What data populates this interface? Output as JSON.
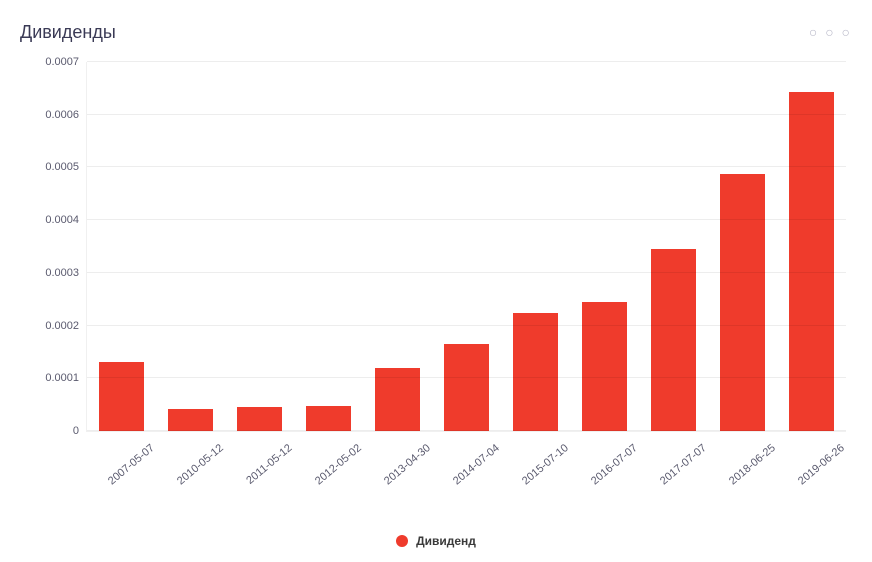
{
  "title": "Дивиденды",
  "menu_icon": "more-horizontal",
  "chart": {
    "type": "bar",
    "series_label": "Дивиденд",
    "series_color": "#ef3b2c",
    "background_color": "#ffffff",
    "grid_color": "rgba(0,0,0,0.07)",
    "axis_label_color": "#5a5a6e",
    "axis_label_fontsize": 11,
    "title_color": "#3a3a55",
    "title_fontsize": 18,
    "bar_width_ratio": 0.64,
    "ylim": [
      0,
      0.0007
    ],
    "ytick_step": 0.0001,
    "yticks": [
      {
        "v": 0,
        "label": "0"
      },
      {
        "v": 0.0001,
        "label": "0.0001"
      },
      {
        "v": 0.0002,
        "label": "0.0002"
      },
      {
        "v": 0.0003,
        "label": "0.0003"
      },
      {
        "v": 0.0004,
        "label": "0.0004"
      },
      {
        "v": 0.0005,
        "label": "0.0005"
      },
      {
        "v": 0.0006,
        "label": "0.0006"
      },
      {
        "v": 0.0007,
        "label": "0.0007"
      }
    ],
    "categories": [
      "2007-05-07",
      "2010-05-12",
      "2011-05-12",
      "2012-05-02",
      "2013-04-30",
      "2014-07-04",
      "2015-07-10",
      "2016-07-07",
      "2017-07-07",
      "2018-06-25",
      "2019-06-26"
    ],
    "values": [
      0.00013,
      4.2e-05,
      4.6e-05,
      4.8e-05,
      0.00012,
      0.000166,
      0.000224,
      0.000244,
      0.000346,
      0.000488,
      0.000644
    ],
    "x_label_rotation_deg": -40,
    "legend_position": "bottom-center",
    "legend_marker": "circle",
    "legend_fontsize": 12,
    "legend_fontweight": 600
  }
}
